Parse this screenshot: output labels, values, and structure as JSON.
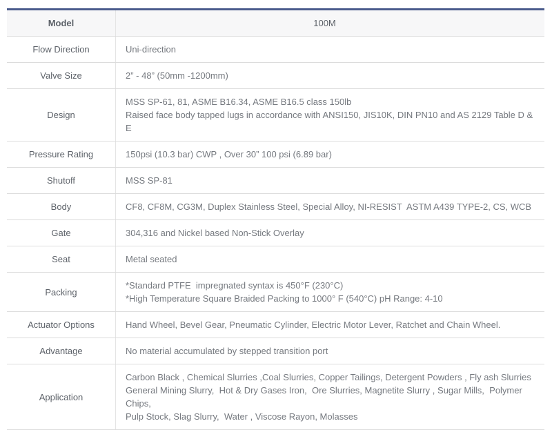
{
  "table": {
    "header": {
      "label": "Model",
      "value": "100M"
    },
    "rows": [
      {
        "label": "Flow Direction",
        "lines": [
          "Uni-direction"
        ]
      },
      {
        "label": "Valve Size",
        "lines": [
          "2” - 48” (50mm -1200mm)"
        ]
      },
      {
        "label": "Design",
        "lines": [
          "MSS SP-61, 81, ASME B16.34, ASME B16.5 class 150lb",
          "Raised face body tapped lugs in accordance with ANSI150, JIS10K, DIN PN10 and AS 2129 Table D & E"
        ]
      },
      {
        "label": "Pressure Rating",
        "lines": [
          "150psi (10.3 bar) CWP , Over 30” 100 psi (6.89 bar)"
        ]
      },
      {
        "label": "Shutoff",
        "lines": [
          "MSS SP-81"
        ]
      },
      {
        "label": "Body",
        "lines": [
          "CF8, CF8M, CG3M, Duplex Stainless Steel, Special Alloy, NI-RESIST  ASTM A439 TYPE-2, CS, WCB"
        ]
      },
      {
        "label": "Gate",
        "lines": [
          "304,316 and Nickel based Non-Stick Overlay"
        ]
      },
      {
        "label": "Seat",
        "lines": [
          "Metal seated"
        ]
      },
      {
        "label": "Packing",
        "lines": [
          "*Standard PTFE  impregnated syntax is 450°F (230°C)",
          "*High Temperature Square Braided Packing to 1000° F (540°C) pH Range: 4-10"
        ]
      },
      {
        "label": "Actuator Options",
        "lines": [
          "Hand Wheel, Bevel Gear, Pneumatic Cylinder, Electric Motor Lever, Ratchet and Chain Wheel."
        ]
      },
      {
        "label": "Advantage",
        "lines": [
          "No material accumulated by stepped transition port"
        ]
      },
      {
        "label": "Application",
        "lines": [
          "Carbon Black , Chemical Slurries ,Coal Slurries, Copper Tailings, Detergent Powders , Fly ash Slurries",
          "General Mining Slurry,  Hot & Dry Gases Iron,  Ore Slurries, Magnetite Slurry , Sugar Mills,  Polymer Chips,",
          "Pulp Stock, Slag Slurry,  Water , Viscose Rayon, Molasses"
        ]
      }
    ],
    "colors": {
      "accent_border": "#4a5b8c",
      "header_bg": "#f7f7f8",
      "row_border": "#dcdcdc",
      "col_divider": "#e4e4e4",
      "label_text": "#5d6269",
      "value_text": "#75797f"
    }
  }
}
